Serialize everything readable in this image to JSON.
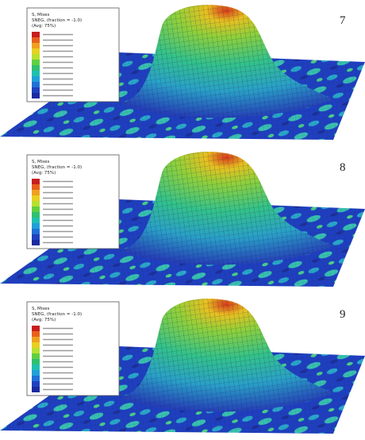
{
  "panels": [
    {
      "label": "7",
      "legend": {
        "title": "S, Mises",
        "subtitle": "SNEG, (fraction = -1.0)",
        "avg": "(Avg: 75%)"
      }
    },
    {
      "label": "8",
      "legend": {
        "title": "S, Mises",
        "subtitle": "SNEG, (fraction = -1.0)",
        "avg": "(Avg: 75%)"
      }
    },
    {
      "label": "9",
      "legend": {
        "title": "S, Mises",
        "subtitle": "SNEG, (fraction = -1.0)",
        "avg": "(Avg: 75%)"
      }
    }
  ]
}
